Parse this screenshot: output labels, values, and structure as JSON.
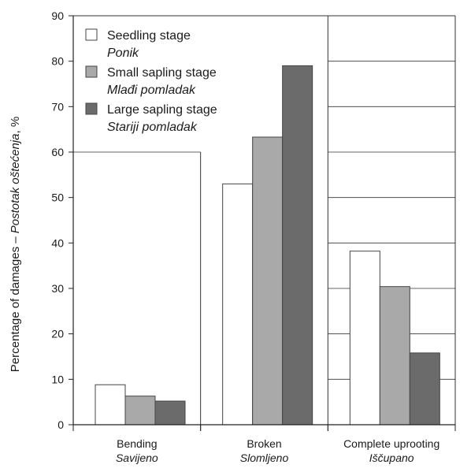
{
  "chart_data": {
    "type": "bar",
    "title": "",
    "xlabel": "",
    "ylabel": {
      "en": "Percentage of damages – ",
      "hr": "Postotak oštećenja",
      "unit": ", %"
    },
    "ylim": [
      0,
      90
    ],
    "yticks": [
      "0",
      "10",
      "20",
      "30",
      "40",
      "50",
      "60",
      "70",
      "80",
      "90"
    ],
    "grid": "horizontal lines above bars",
    "legend_position": "top-left",
    "categories": [
      {
        "en": "Bending",
        "hr": "Savijeno"
      },
      {
        "en": "Broken",
        "hr": "Slomljeno"
      },
      {
        "en": "Complete uprooting",
        "hr": "Iščupano"
      }
    ],
    "series": [
      {
        "name": "Seedling stage",
        "name_hr": "Ponik",
        "color": "#ffffff",
        "values": [
          8.8,
          53.0,
          38.2
        ]
      },
      {
        "name": "Small sapling stage",
        "name_hr": "Mlađi pomladak",
        "color": "#a9a9a9",
        "values": [
          6.3,
          63.3,
          30.4
        ]
      },
      {
        "name": "Large sapling stage",
        "name_hr": "Stariji pomladak",
        "color": "#6b6b6b",
        "values": [
          5.2,
          79.0,
          15.8
        ]
      }
    ]
  }
}
